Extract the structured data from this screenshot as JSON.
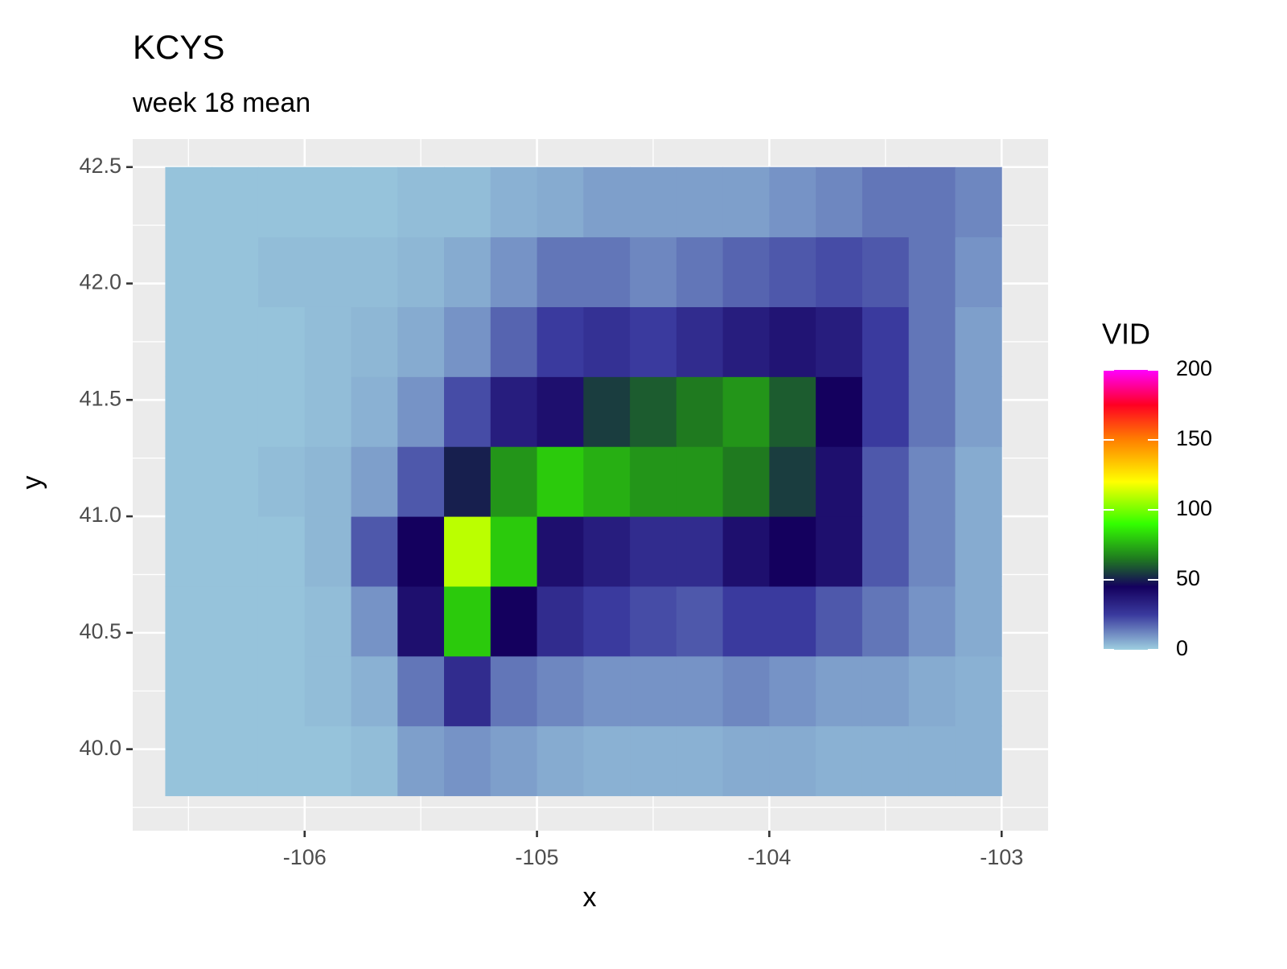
{
  "chart_data": {
    "type": "heatmap",
    "title": "KCYS",
    "subtitle": "week 18 mean",
    "x_label": "x",
    "y_label": "y",
    "xlim": [
      -106.74,
      -102.8
    ],
    "ylim": [
      39.65,
      42.62
    ],
    "xticks": [
      -106,
      -105,
      -104,
      -103
    ],
    "yticks": [
      {
        "value": 40,
        "label": "40.0"
      },
      40.5,
      {
        "value": 41,
        "label": "41.0"
      },
      41.5,
      {
        "value": 42,
        "label": "42.0"
      },
      42.5
    ],
    "grid": true,
    "x": [
      -106.5,
      -106.3,
      -106.1,
      -105.9,
      -105.7,
      -105.5,
      -105.3,
      -105.1,
      -104.9,
      -104.7,
      -104.5,
      -104.3,
      -104.1,
      -103.9,
      -103.7,
      -103.5,
      -103.3,
      -103.1
    ],
    "y": [
      39.95,
      40.25,
      40.55,
      40.85,
      41.15,
      41.45,
      41.75,
      42.05,
      42.35
    ],
    "z": [
      [
        2,
        2,
        2,
        2,
        3,
        8,
        10,
        8,
        6,
        5,
        5,
        5,
        6,
        6,
        5,
        5,
        5,
        5
      ],
      [
        2,
        2,
        2,
        3,
        5,
        15,
        30,
        15,
        12,
        10,
        10,
        10,
        12,
        10,
        8,
        8,
        6,
        5
      ],
      [
        2,
        2,
        2,
        3,
        10,
        40,
        80,
        45,
        30,
        25,
        22,
        20,
        25,
        25,
        20,
        15,
        10,
        6
      ],
      [
        2,
        2,
        2,
        4,
        20,
        45,
        110,
        80,
        40,
        35,
        30,
        30,
        40,
        45,
        40,
        20,
        12,
        6
      ],
      [
        2,
        2,
        3,
        4,
        8,
        20,
        50,
        70,
        80,
        75,
        70,
        70,
        65,
        55,
        40,
        20,
        12,
        6
      ],
      [
        2,
        2,
        2,
        3,
        5,
        10,
        22,
        35,
        40,
        55,
        60,
        65,
        70,
        60,
        45,
        25,
        15,
        8
      ],
      [
        2,
        2,
        2,
        3,
        4,
        6,
        10,
        18,
        25,
        28,
        25,
        30,
        35,
        38,
        35,
        25,
        15,
        8
      ],
      [
        2,
        2,
        3,
        3,
        3,
        4,
        6,
        10,
        15,
        15,
        12,
        15,
        18,
        20,
        22,
        20,
        15,
        10
      ],
      [
        2,
        2,
        2,
        2,
        2,
        3,
        3,
        5,
        6,
        8,
        8,
        8,
        8,
        10,
        12,
        15,
        15,
        12
      ]
    ],
    "legend": {
      "title": "VID",
      "limits": [
        0,
        200
      ],
      "ticks": [
        0,
        50,
        100,
        150,
        200
      ],
      "colorscale": [
        {
          "value": 0,
          "color": "#9ecfe0"
        },
        {
          "value": 25,
          "color": "#3a3a9e"
        },
        {
          "value": 45,
          "color": "#14005e"
        },
        {
          "value": 65,
          "color": "#1f7a1f"
        },
        {
          "value": 90,
          "color": "#33ff00"
        },
        {
          "value": 120,
          "color": "#ffff00"
        },
        {
          "value": 150,
          "color": "#ff8000"
        },
        {
          "value": 175,
          "color": "#ff0022"
        },
        {
          "value": 200,
          "color": "#ff00ff"
        }
      ]
    }
  }
}
